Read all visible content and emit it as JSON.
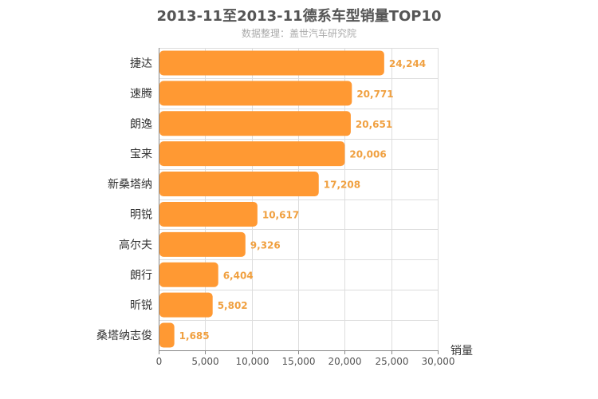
{
  "chart_data": {
    "type": "bar",
    "orientation": "horizontal",
    "title": "2013-11至2013-11德系车型销量TOP10",
    "subtitle": "数据整理：盖世汽车研究院",
    "xlabel": "销量",
    "ylabel": "",
    "xlim": [
      0,
      30000
    ],
    "xticks": [
      0,
      5000,
      10000,
      15000,
      20000,
      25000,
      30000
    ],
    "xtick_labels": [
      "0",
      "5,000",
      "10,000",
      "15,000",
      "20,000",
      "25,000",
      "30,000"
    ],
    "categories": [
      "捷达",
      "速腾",
      "朗逸",
      "宝来",
      "新桑塔纳",
      "明锐",
      "高尔夫",
      "朗行",
      "昕锐",
      "桑塔纳志俊"
    ],
    "values": [
      24244,
      20771,
      20651,
      20006,
      17208,
      10617,
      9326,
      6404,
      5802,
      1685
    ],
    "value_labels": [
      "24,244",
      "20,771",
      "20,651",
      "20,006",
      "17,208",
      "10,617",
      "9,326",
      "6,404",
      "5,802",
      "1,685"
    ],
    "grid": true,
    "colors": {
      "bar": "#ff9933",
      "value_label": "#f0a040",
      "grid": "#dddddd",
      "axis": "#888888",
      "title": "#555555",
      "subtitle": "#aaaaaa",
      "category_text": "#333333",
      "tick_text": "#555555"
    }
  }
}
